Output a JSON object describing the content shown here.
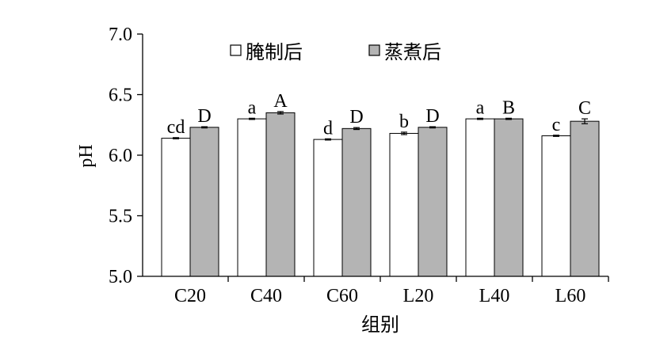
{
  "chart_data": {
    "type": "bar",
    "categories": [
      "C20",
      "C40",
      "C60",
      "L20",
      "L40",
      "L60"
    ],
    "series": [
      {
        "name": "腌制后",
        "color": "#ffffff",
        "values": [
          6.14,
          6.3,
          6.13,
          6.18,
          6.3,
          6.16
        ],
        "errors": [
          0.005,
          0.005,
          0.005,
          0.01,
          0.005,
          0.005
        ],
        "sig_labels": [
          "cd",
          "a",
          "d",
          "b",
          "a",
          "c"
        ]
      },
      {
        "name": "蒸煮后",
        "color": "#b4b4b4",
        "values": [
          6.23,
          6.35,
          6.22,
          6.23,
          6.3,
          6.28
        ],
        "errors": [
          0.005,
          0.01,
          0.008,
          0.005,
          0.005,
          0.02
        ],
        "sig_labels": [
          "D",
          "A",
          "D",
          "D",
          "B",
          "C"
        ]
      }
    ],
    "xlabel": "组别",
    "ylabel": "pH",
    "ylim": [
      5.0,
      7.0
    ],
    "ytick_labels": [
      "5.0",
      "5.5",
      "6.0",
      "6.5",
      "7.0"
    ],
    "legend": "top",
    "grid": false,
    "outline_color": "#000000"
  }
}
